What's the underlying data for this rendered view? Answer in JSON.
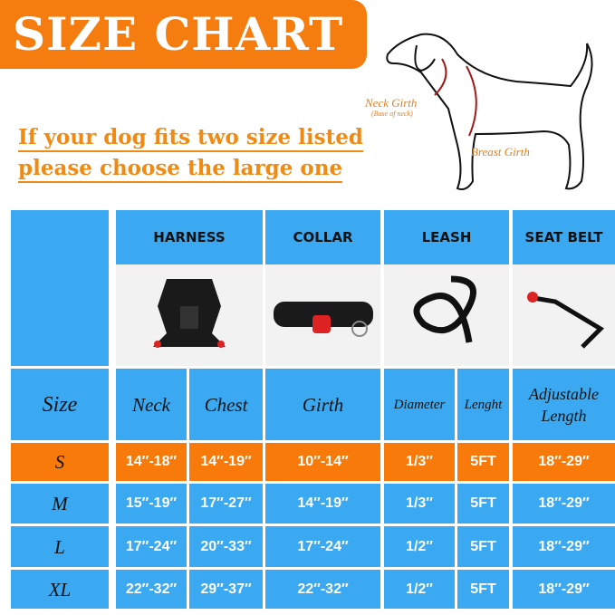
{
  "title": "SIZE CHART",
  "subtitle": [
    "If your dog fits two size listed",
    "please choose the large one"
  ],
  "diagram": {
    "neck_label": "Neck Girth",
    "neck_note": "(Base of neck)",
    "breast_label": "Breast Girth"
  },
  "products": [
    "HARNESS",
    "COLLAR",
    "LEASH",
    "SEAT BELT"
  ],
  "columns": {
    "size": "Size",
    "neck": "Neck",
    "chest": "Chest",
    "girth": "Girth",
    "diameter": "Diameter",
    "length": "Lenght",
    "adjustable": "Adjustable Length"
  },
  "rows": [
    {
      "size": "S",
      "neck": "14″-18″",
      "chest": "14″-19″",
      "girth": "10″-14″",
      "diameter": "1/3″",
      "length": "5FT",
      "belt": "18″-29″"
    },
    {
      "size": "M",
      "neck": "15″-19″",
      "chest": "17″-27″",
      "girth": "14″-19″",
      "diameter": "1/3″",
      "length": "5FT",
      "belt": "18″-29″"
    },
    {
      "size": "L",
      "neck": "17″-24″",
      "chest": "20″-33″",
      "girth": "17″-24″",
      "diameter": "1/2″",
      "length": "5FT",
      "belt": "18″-29″"
    },
    {
      "size": "XL",
      "neck": "22″-32″",
      "chest": "29″-37″",
      "girth": "22″-32″",
      "diameter": "1/2″",
      "length": "5FT",
      "belt": "18″-29″"
    }
  ],
  "colors": {
    "blue": "#3ba9f1",
    "orange": "#f77a0a",
    "highlight_row": "S"
  }
}
